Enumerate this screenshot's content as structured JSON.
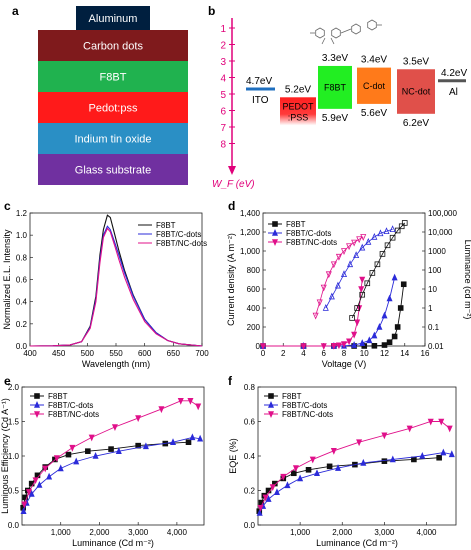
{
  "panel_labels": [
    "a",
    "b",
    "c",
    "d",
    "e",
    "f"
  ],
  "device_stack": {
    "cap": "Aluminum",
    "layers": [
      {
        "label": "Carbon dots",
        "color": "#7f1a1c"
      },
      {
        "label": "F8BT",
        "color": "#20b24f"
      },
      {
        "label": "Pedot:pss",
        "color": "#ff1a1a"
      },
      {
        "label": "Indium tin oxide",
        "color": "#2a8fc5"
      },
      {
        "label": "Glass substrate",
        "color": "#7030a0"
      }
    ],
    "cap_color": "#001f3f"
  },
  "energy_diagram": {
    "ticks": [
      "1",
      "2",
      "3",
      "4",
      "5",
      "6",
      "7",
      "8"
    ],
    "axis_label": "W_F (eV)",
    "axis_color": "#e0007a",
    "ito": {
      "label": "ITO",
      "value_label": "4.7eV",
      "value": 4.7,
      "color": "#1f6fbf"
    },
    "al": {
      "label": "Al",
      "value_label": "4.2eV",
      "value": 4.2,
      "color": "#555555"
    },
    "blocks": [
      {
        "label": "PEDOT\n:PSS",
        "top_label": "5.2eV",
        "bottom_label": "",
        "top": 5.2,
        "bottom": 6.9,
        "color": "#ff1f1f",
        "gradient": true
      },
      {
        "label": "F8BT",
        "top_label": "3.3eV",
        "bottom_label": "5.9eV",
        "top": 3.3,
        "bottom": 5.9,
        "color": "#22ee22"
      },
      {
        "label": "C-dot",
        "top_label": "3.4eV",
        "bottom_label": "5.6eV",
        "top": 3.4,
        "bottom": 5.6,
        "color": "#ff7a1a"
      },
      {
        "label": "NC-dot",
        "top_label": "3.5eV",
        "bottom_label": "6.2eV",
        "top": 3.5,
        "bottom": 6.2,
        "color": "#e0504a"
      }
    ]
  },
  "chart_data": [
    {
      "panel": "c",
      "type": "line",
      "xlabel": "Wavelength (nm)",
      "ylabel": "Normalized E.L. Intensity",
      "xlim": [
        400,
        700
      ],
      "ylim": [
        0,
        1.2
      ],
      "x_ticks": [
        "400",
        "450",
        "500",
        "550",
        "600",
        "650",
        "700"
      ],
      "y_ticks": [
        "0.0",
        "0.2",
        "0.4",
        "0.6",
        "0.8",
        "1.0",
        "1.2"
      ],
      "legend_position": "top-right",
      "series": [
        {
          "name": "F8BT",
          "color": "#111111",
          "points": [
            [
              400,
              0
            ],
            [
              440,
              0.002
            ],
            [
              470,
              0.01
            ],
            [
              490,
              0.04
            ],
            [
              505,
              0.18
            ],
            [
              515,
              0.45
            ],
            [
              522,
              0.82
            ],
            [
              528,
              1.05
            ],
            [
              535,
              1.18
            ],
            [
              540,
              1.16
            ],
            [
              548,
              1.0
            ],
            [
              555,
              0.86
            ],
            [
              565,
              0.68
            ],
            [
              580,
              0.46
            ],
            [
              600,
              0.24
            ],
            [
              620,
              0.12
            ],
            [
              640,
              0.05
            ],
            [
              660,
              0.02
            ],
            [
              700,
              0.0
            ]
          ]
        },
        {
          "name": "F8BT/C-dots",
          "color": "#2b2bd9",
          "points": [
            [
              400,
              0
            ],
            [
              440,
              0.002
            ],
            [
              470,
              0.01
            ],
            [
              490,
              0.04
            ],
            [
              505,
              0.17
            ],
            [
              515,
              0.42
            ],
            [
              522,
              0.78
            ],
            [
              528,
              1.0
            ],
            [
              535,
              1.08
            ],
            [
              540,
              1.05
            ],
            [
              548,
              0.93
            ],
            [
              555,
              0.82
            ],
            [
              565,
              0.66
            ],
            [
              580,
              0.45
            ],
            [
              600,
              0.24
            ],
            [
              620,
              0.12
            ],
            [
              640,
              0.05
            ],
            [
              660,
              0.02
            ],
            [
              700,
              0.0
            ]
          ]
        },
        {
          "name": "F8BT/NC-dots",
          "color": "#e0108a",
          "points": [
            [
              400,
              0
            ],
            [
              440,
              0.002
            ],
            [
              470,
              0.01
            ],
            [
              490,
              0.04
            ],
            [
              505,
              0.16
            ],
            [
              515,
              0.4
            ],
            [
              522,
              0.75
            ],
            [
              528,
              0.98
            ],
            [
              535,
              1.06
            ],
            [
              540,
              1.03
            ],
            [
              548,
              0.9
            ],
            [
              555,
              0.78
            ],
            [
              565,
              0.62
            ],
            [
              580,
              0.42
            ],
            [
              600,
              0.22
            ],
            [
              620,
              0.11
            ],
            [
              640,
              0.05
            ],
            [
              660,
              0.02
            ],
            [
              700,
              0.0
            ]
          ]
        }
      ]
    },
    {
      "panel": "d",
      "type": "line",
      "xlabel": "Voltage (V)",
      "ylabel": "Current density (A m⁻²)",
      "y2label": "Luminance (cd m⁻²)",
      "xlim": [
        0,
        16
      ],
      "ylim": [
        0,
        1400
      ],
      "y2lim": [
        0.01,
        100000
      ],
      "y2_scale": "log",
      "x_ticks": [
        "0",
        "2",
        "4",
        "6",
        "8",
        "10",
        "12",
        "14",
        "16"
      ],
      "y_ticks": [
        "0",
        "200",
        "400",
        "600",
        "800",
        "1,000",
        "1,200",
        "1,400"
      ],
      "y2_ticks": [
        "0.01",
        "0.1",
        "1",
        "10",
        "100",
        "1000",
        "10,000",
        "100,000"
      ],
      "legend_position": "top-left",
      "series": [
        {
          "name": "F8BT",
          "color": "#111111",
          "marker": "square",
          "current_density": [
            [
              0,
              0
            ],
            [
              4,
              0
            ],
            [
              7,
              0
            ],
            [
              9,
              0
            ],
            [
              10,
              0
            ],
            [
              11,
              2
            ],
            [
              12,
              10
            ],
            [
              12.5,
              40
            ],
            [
              13,
              100
            ],
            [
              13.3,
              200
            ],
            [
              13.6,
              400
            ],
            [
              13.9,
              650
            ]
          ],
          "luminance": [
            [
              8.8,
              0.3
            ],
            [
              9.3,
              1
            ],
            [
              9.8,
              5
            ],
            [
              10.3,
              20
            ],
            [
              10.8,
              70
            ],
            [
              11.3,
              200
            ],
            [
              11.8,
              700
            ],
            [
              12.3,
              2000
            ],
            [
              12.8,
              5000
            ],
            [
              13.3,
              12000
            ],
            [
              13.7,
              20000
            ],
            [
              14,
              30000
            ]
          ]
        },
        {
          "name": "F8BT/C-dots",
          "color": "#2b2bd9",
          "marker": "triangle-up",
          "current_density": [
            [
              0,
              0
            ],
            [
              4,
              0
            ],
            [
              7,
              0
            ],
            [
              8,
              2
            ],
            [
              9,
              10
            ],
            [
              9.8,
              30
            ],
            [
              10.5,
              60
            ],
            [
              11,
              110
            ],
            [
              11.5,
              200
            ],
            [
              12,
              320
            ],
            [
              12.5,
              500
            ],
            [
              13,
              720
            ]
          ],
          "luminance": [
            [
              6.2,
              1
            ],
            [
              6.8,
              4
            ],
            [
              7.4,
              15
            ],
            [
              8,
              60
            ],
            [
              8.6,
              200
            ],
            [
              9.2,
              600
            ],
            [
              9.8,
              1500
            ],
            [
              10.4,
              3000
            ],
            [
              11,
              5500
            ],
            [
              11.6,
              8500
            ],
            [
              12.2,
              11000
            ],
            [
              12.8,
              14000
            ]
          ]
        },
        {
          "name": "F8BT/NC-dots",
          "color": "#e0108a",
          "marker": "triangle-down",
          "current_density": [
            [
              0,
              0
            ],
            [
              4,
              0
            ],
            [
              6,
              0
            ],
            [
              7,
              2
            ],
            [
              7.5,
              8
            ],
            [
              8,
              20
            ],
            [
              8.5,
              50
            ],
            [
              9,
              120
            ],
            [
              9.3,
              250
            ],
            [
              9.5,
              400
            ],
            [
              9.7,
              600
            ],
            [
              9.8,
              700
            ]
          ],
          "luminance": [
            [
              5.2,
              0.4
            ],
            [
              5.6,
              2
            ],
            [
              6,
              12
            ],
            [
              6.5,
              60
            ],
            [
              7,
              200
            ],
            [
              7.5,
              500
            ],
            [
              8,
              1000
            ],
            [
              8.5,
              1800
            ],
            [
              9,
              2800
            ],
            [
              9.5,
              4200
            ],
            [
              9.9,
              5500
            ]
          ]
        }
      ]
    },
    {
      "panel": "e",
      "type": "line",
      "xlabel": "Luminance (Cd m⁻²)",
      "ylabel": "Luminous Efficiency (Cd A⁻¹)",
      "xlim": [
        0,
        4700
      ],
      "ylim": [
        0,
        2.0
      ],
      "x_ticks": [
        "1,000",
        "2,000",
        "3,000",
        "4,000"
      ],
      "x_tick_values": [
        1000,
        2000,
        3000,
        4000
      ],
      "y_ticks": [
        "0.0",
        "0.5",
        "1.0",
        "1.5",
        "2.0"
      ],
      "legend_position": "top-left",
      "series": [
        {
          "name": "F8BT",
          "color": "#111111",
          "marker": "square",
          "points": [
            [
              30,
              0.25
            ],
            [
              80,
              0.4
            ],
            [
              150,
              0.5
            ],
            [
              250,
              0.6
            ],
            [
              400,
              0.72
            ],
            [
              600,
              0.84
            ],
            [
              850,
              0.95
            ],
            [
              1200,
              1.02
            ],
            [
              1700,
              1.07
            ],
            [
              2300,
              1.1
            ],
            [
              3000,
              1.15
            ],
            [
              3700,
              1.18
            ],
            [
              4300,
              1.2
            ]
          ]
        },
        {
          "name": "F8BT/C-dots",
          "color": "#2b2bd9",
          "marker": "triangle-up",
          "points": [
            [
              40,
              0.2
            ],
            [
              120,
              0.32
            ],
            [
              250,
              0.45
            ],
            [
              450,
              0.58
            ],
            [
              700,
              0.7
            ],
            [
              1000,
              0.82
            ],
            [
              1400,
              0.92
            ],
            [
              1900,
              1.0
            ],
            [
              2500,
              1.07
            ],
            [
              3200,
              1.14
            ],
            [
              3900,
              1.2
            ],
            [
              4400,
              1.27
            ],
            [
              4600,
              1.25
            ]
          ]
        },
        {
          "name": "F8BT/NC-dots",
          "color": "#e0108a",
          "marker": "triangle-down",
          "points": [
            [
              60,
              0.3
            ],
            [
              180,
              0.48
            ],
            [
              350,
              0.65
            ],
            [
              600,
              0.82
            ],
            [
              900,
              0.97
            ],
            [
              1300,
              1.12
            ],
            [
              1800,
              1.27
            ],
            [
              2400,
              1.42
            ],
            [
              3000,
              1.55
            ],
            [
              3600,
              1.68
            ],
            [
              4100,
              1.8
            ],
            [
              4350,
              1.8
            ],
            [
              4550,
              1.72
            ]
          ]
        }
      ]
    },
    {
      "panel": "f",
      "type": "line",
      "xlabel": "Luminance (Cd m⁻²)",
      "ylabel": "EQE (%)",
      "xlim": [
        0,
        4700
      ],
      "ylim": [
        0,
        0.8
      ],
      "x_ticks": [
        "1,000",
        "2,000",
        "3,000",
        "4,000"
      ],
      "x_tick_values": [
        1000,
        2000,
        3000,
        4000
      ],
      "y_ticks": [
        "0.0",
        "0.2",
        "0.4",
        "0.6",
        "0.8"
      ],
      "legend_position": "top-left",
      "series": [
        {
          "name": "F8BT",
          "color": "#111111",
          "marker": "square",
          "points": [
            [
              30,
              0.08
            ],
            [
              80,
              0.13
            ],
            [
              150,
              0.17
            ],
            [
              250,
              0.2
            ],
            [
              400,
              0.24
            ],
            [
              600,
              0.27
            ],
            [
              850,
              0.3
            ],
            [
              1200,
              0.32
            ],
            [
              1700,
              0.34
            ],
            [
              2300,
              0.35
            ],
            [
              3000,
              0.37
            ],
            [
              3700,
              0.38
            ],
            [
              4300,
              0.39
            ]
          ]
        },
        {
          "name": "F8BT/C-dots",
          "color": "#2b2bd9",
          "marker": "triangle-up",
          "points": [
            [
              40,
              0.07
            ],
            [
              120,
              0.11
            ],
            [
              250,
              0.15
            ],
            [
              450,
              0.19
            ],
            [
              700,
              0.23
            ],
            [
              1000,
              0.27
            ],
            [
              1400,
              0.3
            ],
            [
              1900,
              0.33
            ],
            [
              2500,
              0.36
            ],
            [
              3200,
              0.38
            ],
            [
              3900,
              0.4
            ],
            [
              4400,
              0.42
            ],
            [
              4600,
              0.41
            ]
          ]
        },
        {
          "name": "F8BT/NC-dots",
          "color": "#e0108a",
          "marker": "triangle-down",
          "points": [
            [
              60,
              0.1
            ],
            [
              180,
              0.16
            ],
            [
              350,
              0.22
            ],
            [
              600,
              0.28
            ],
            [
              900,
              0.33
            ],
            [
              1300,
              0.38
            ],
            [
              1800,
              0.43
            ],
            [
              2400,
              0.48
            ],
            [
              3000,
              0.52
            ],
            [
              3600,
              0.56
            ],
            [
              4100,
              0.6
            ],
            [
              4350,
              0.6
            ],
            [
              4550,
              0.56
            ]
          ]
        }
      ]
    }
  ]
}
